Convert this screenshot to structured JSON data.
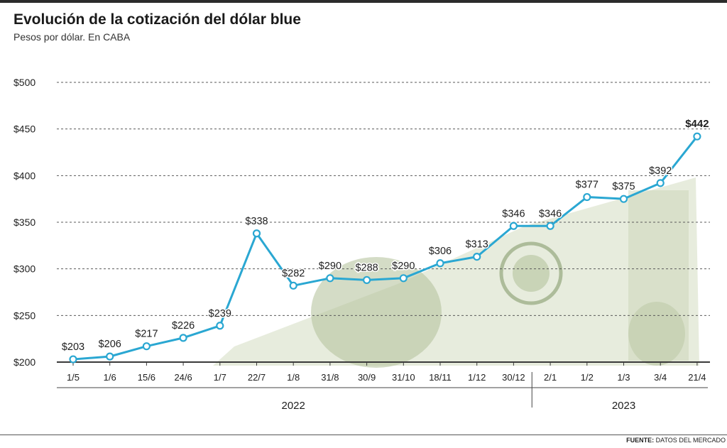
{
  "header": {
    "title": "Evolución de la cotización del dólar blue",
    "subtitle": "Pesos por dólar. En CABA"
  },
  "footer": {
    "source_label": "FUENTE:",
    "source_text": "DATOS DEL MERCADO"
  },
  "colors": {
    "line": "#2aa7d2",
    "grid": "#5a5a5a",
    "text": "#1e1e1e",
    "banknote": "#c9d3b4"
  },
  "chart_data": {
    "type": "line",
    "title": "Evolución de la cotización del dólar blue",
    "subtitle": "Pesos por dólar. En CABA",
    "categories": [
      "1/5",
      "1/6",
      "15/6",
      "24/6",
      "1/7",
      "22/7",
      "1/8",
      "31/8",
      "30/9",
      "31/10",
      "18/11",
      "1/12",
      "30/12",
      "2/1",
      "1/2",
      "1/3",
      "3/4",
      "21/4"
    ],
    "values": [
      203,
      206,
      217,
      226,
      239,
      338,
      282,
      290,
      288,
      290,
      306,
      313,
      346,
      346,
      377,
      375,
      392,
      442
    ],
    "value_labels": [
      "$203",
      "$206",
      "$217",
      "$226",
      "$239",
      "$338",
      "$282",
      "$290",
      "$288",
      "$290",
      "$306",
      "$313",
      "$346",
      "$346",
      "$377",
      "$375",
      "$392",
      "$442"
    ],
    "yticks": [
      200,
      250,
      300,
      350,
      400,
      450,
      500
    ],
    "ytick_labels": [
      "$200",
      "$250",
      "$300",
      "$350",
      "$400",
      "$450",
      "$500"
    ],
    "ylim": [
      200,
      500
    ],
    "year_groups": [
      {
        "label": "2022",
        "first": 0,
        "last": 12
      },
      {
        "label": "2023",
        "first": 13,
        "last": 17
      }
    ],
    "grid": "horizontal-dashed",
    "highlight_last": true
  }
}
